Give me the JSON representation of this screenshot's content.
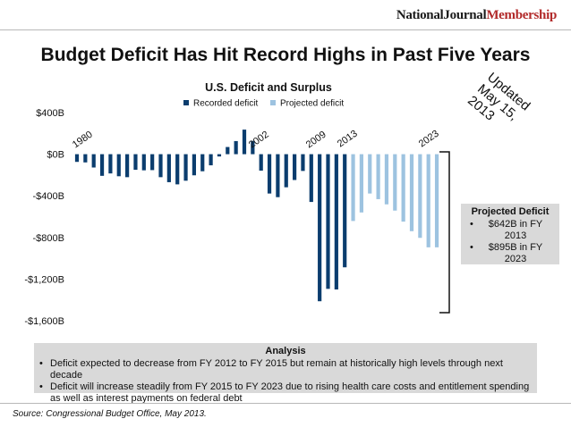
{
  "header": {
    "brand_part1": "NationalJournal",
    "brand_part2": "Membership",
    "title": "Budget Deficit Has Hit Record Highs in Past Five Years",
    "stamp_line1": "Updated",
    "stamp_line2": "May 15, 2013"
  },
  "chart_data": {
    "type": "bar",
    "title": "U.S. Deficit and Surplus",
    "xlabel": "",
    "ylabel": "",
    "ylim": [
      -1600,
      400
    ],
    "yticks": [
      400,
      0,
      -400,
      -800,
      -1200,
      -1600
    ],
    "ytick_labels": [
      "$400B",
      "$0B",
      "-$400B",
      "-$800B",
      "-$1,200B",
      "-$1,600B"
    ],
    "legend_position": "top",
    "categories": [
      1980,
      1981,
      1982,
      1983,
      1984,
      1985,
      1986,
      1987,
      1988,
      1989,
      1990,
      1991,
      1992,
      1993,
      1994,
      1995,
      1996,
      1997,
      1998,
      1999,
      2000,
      2001,
      2002,
      2003,
      2004,
      2005,
      2006,
      2007,
      2008,
      2009,
      2010,
      2011,
      2012,
      2013,
      2014,
      2015,
      2016,
      2017,
      2018,
      2019,
      2020,
      2021,
      2022,
      2023
    ],
    "series": [
      {
        "name": "Recorded deficit",
        "color": "#0b3d6e",
        "values": [
          -74,
          -79,
          -128,
          -208,
          -185,
          -212,
          -221,
          -150,
          -155,
          -153,
          -221,
          -269,
          -290,
          -255,
          -203,
          -164,
          -107,
          -22,
          69,
          126,
          236,
          128,
          -158,
          -378,
          -413,
          -318,
          -248,
          -161,
          -459,
          -1413,
          -1294,
          -1300,
          -1087,
          null,
          null,
          null,
          null,
          null,
          null,
          null,
          null,
          null,
          null,
          null
        ]
      },
      {
        "name": "Projected deficit",
        "color": "#9dc3e0",
        "values": [
          null,
          null,
          null,
          null,
          null,
          null,
          null,
          null,
          null,
          null,
          null,
          null,
          null,
          null,
          null,
          null,
          null,
          null,
          null,
          null,
          null,
          null,
          null,
          null,
          null,
          null,
          null,
          null,
          null,
          null,
          null,
          null,
          null,
          -642,
          -560,
          -378,
          -432,
          -482,
          -542,
          -648,
          -740,
          -804,
          -895,
          -895
        ]
      }
    ],
    "annotations": [
      "1980",
      "2002",
      "2009",
      "2013",
      "2023"
    ]
  },
  "projected_box": {
    "heading": "Projected Deficit",
    "item1": "$642B in FY 2013",
    "item2": "$895B in FY 2023"
  },
  "analysis": {
    "heading": "Analysis",
    "point1": "Deficit expected to decrease from FY 2012 to FY 2015 but remain at historically high levels through next decade",
    "point2": "Deficit will increase steadily from FY 2015 to FY 2023 due to rising health care costs and entitlement spending as well as interest payments on federal debt"
  },
  "source": "Source: Congressional Budget Office, May 2013."
}
